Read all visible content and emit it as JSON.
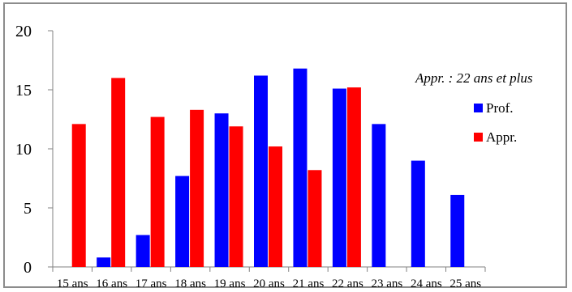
{
  "chart_data": {
    "type": "bar",
    "categories": [
      "15 ans",
      "16 ans",
      "17 ans",
      "18 ans",
      "19 ans",
      "20 ans",
      "21 ans",
      "22 ans",
      "23 ans",
      "24 ans",
      "25 ans"
    ],
    "series": [
      {
        "name": "Prof.",
        "color": "#0000ff",
        "values": [
          0,
          0.8,
          2.7,
          7.7,
          13.0,
          16.2,
          16.8,
          15.1,
          12.1,
          9.0,
          6.1
        ]
      },
      {
        "name": "Appr.",
        "color": "#ff0000",
        "values": [
          12.1,
          16.0,
          12.7,
          13.3,
          11.9,
          10.2,
          8.2,
          15.2,
          0,
          0,
          0
        ]
      }
    ],
    "ylim": [
      0,
      20
    ],
    "yticks": [
      "0",
      "5",
      "10",
      "15",
      "20"
    ],
    "annotation": "Appr. : 22 ans et plus",
    "legend_position": "right",
    "grid": false
  }
}
